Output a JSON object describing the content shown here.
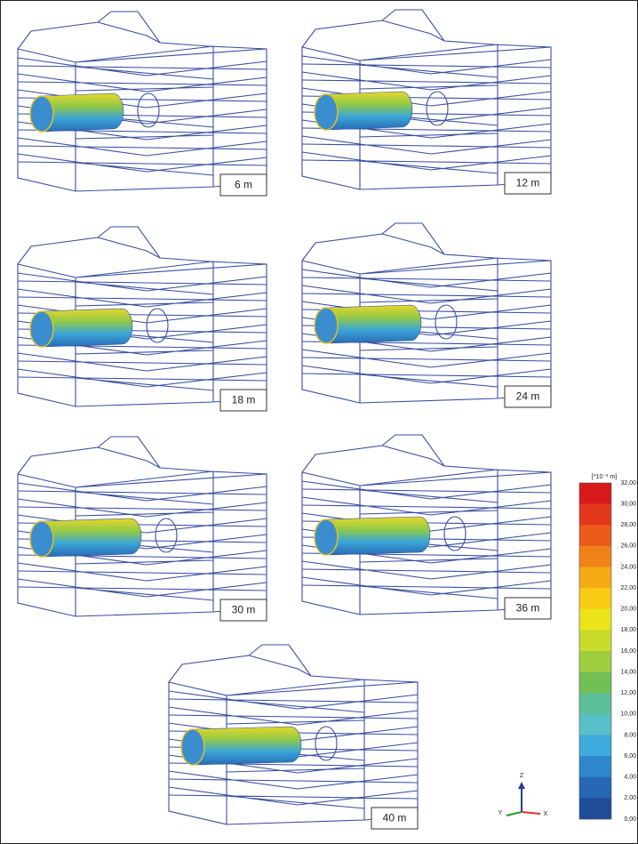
{
  "panels": [
    {
      "label": "6 m"
    },
    {
      "label": "12 m"
    },
    {
      "label": "18 m"
    },
    {
      "label": "24 m"
    },
    {
      "label": "30 m"
    },
    {
      "label": "36 m"
    },
    {
      "label": "40 m"
    }
  ],
  "legend": {
    "title": "[*10⁻³ m]",
    "ticks": [
      "32,00",
      "30,00",
      "28,00",
      "26,00",
      "24,00",
      "22,00",
      "20,00",
      "18,00",
      "16,00",
      "14,00",
      "12,00",
      "10,00",
      "8,00",
      "6,00",
      "4,00",
      "2,00",
      "0,00"
    ],
    "colors": [
      "#d7191c",
      "#e3371c",
      "#ec5a1a",
      "#f08218",
      "#f5a914",
      "#f7cc12",
      "#eae419",
      "#c9dc2c",
      "#9fcd3e",
      "#72bf55",
      "#5dbf98",
      "#58c0c8",
      "#3ea9dd",
      "#2f87cb",
      "#2767b3",
      "#1f4c99"
    ]
  },
  "axes": {
    "z": "Z",
    "y": "Y",
    "x": "X"
  }
}
